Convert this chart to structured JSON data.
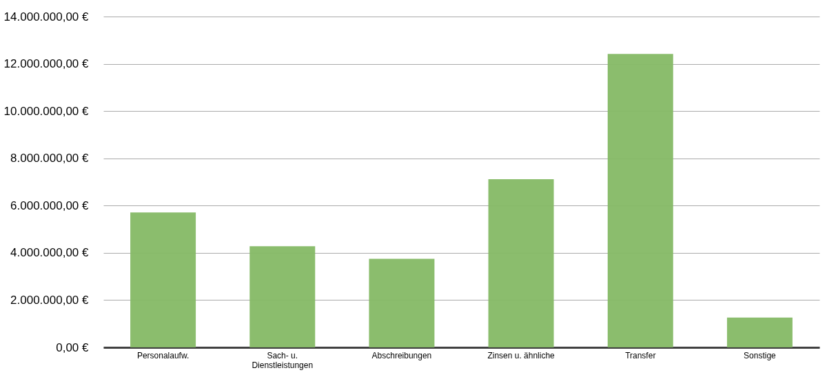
{
  "chart_data": {
    "type": "bar",
    "categories": [
      "Personalaufw.",
      "Sach- u.\nDienstleistungen",
      "Abschreibungen",
      "Zinsen u. ähnliche",
      "Transfer",
      "Sonstige"
    ],
    "values": [
      5710000,
      4280000,
      3750000,
      7120000,
      12420000,
      1260000
    ],
    "color": "#85b965",
    "ylim": [
      0,
      14000000
    ],
    "yticks": [
      {
        "value": 0,
        "label": "0,00 €"
      },
      {
        "value": 2000000,
        "label": "2.000.000,00 €"
      },
      {
        "value": 4000000,
        "label": "4.000.000,00 €"
      },
      {
        "value": 6000000,
        "label": "6.000.000,00 €"
      },
      {
        "value": 8000000,
        "label": "8.000.000,00 €"
      },
      {
        "value": 10000000,
        "label": "10.000.000,00 €"
      },
      {
        "value": 12000000,
        "label": "12.000.000,00 €"
      },
      {
        "value": 14000000,
        "label": "14.000.000,00 €"
      }
    ],
    "grid": "y"
  }
}
